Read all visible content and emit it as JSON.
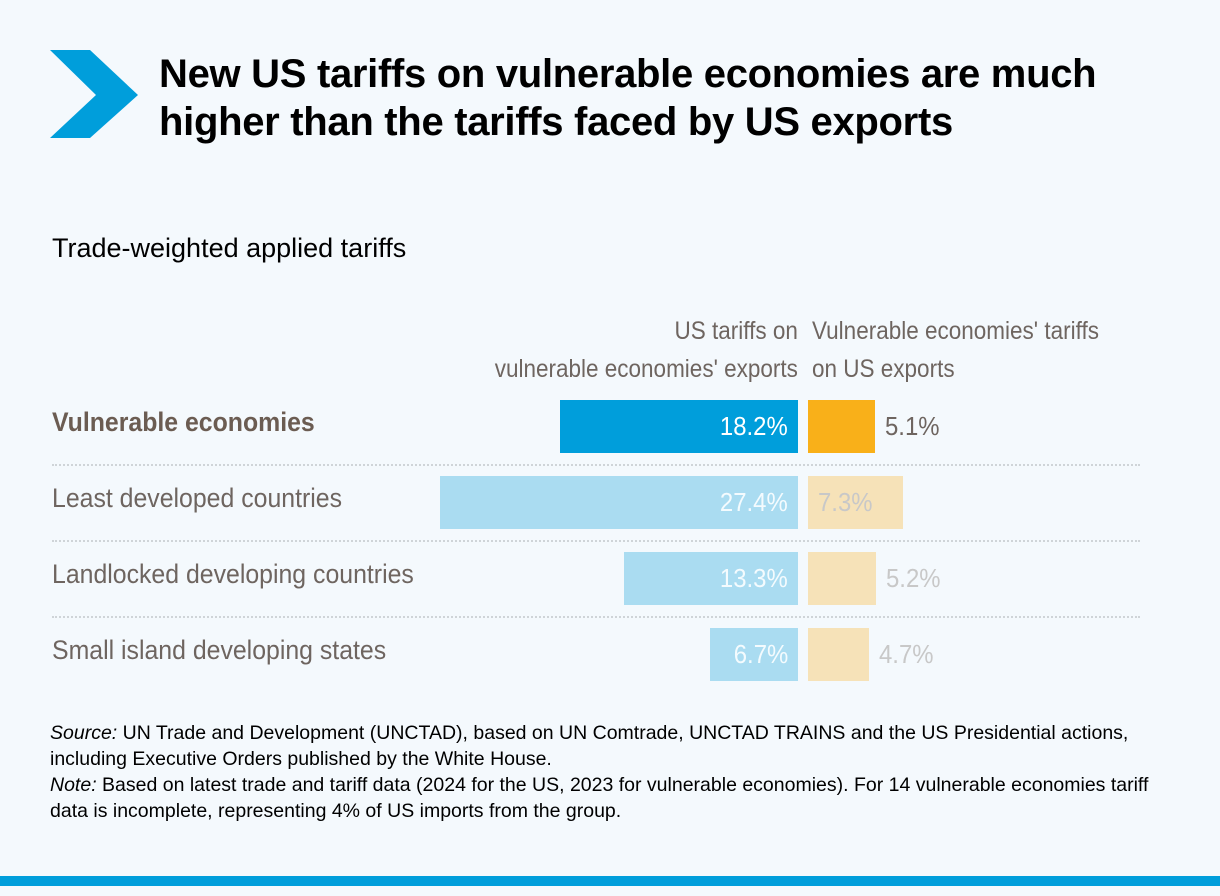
{
  "title": "New US tariffs on vulnerable economies are much higher than the tariffs faced by US exports",
  "colors": {
    "brand": "#009edb",
    "us_highlight": "#009edb",
    "us_light": "#aadcf1",
    "vuln_highlight": "#f9b019",
    "vuln_light": "#f6e2b8"
  },
  "chart_data": {
    "type": "bar",
    "title": "Trade-weighted applied tariffs",
    "unit": "%",
    "categories": [
      "Vulnerable economies",
      "Least developed countries",
      "Landlocked developing countries",
      "Small island developing states"
    ],
    "series": [
      {
        "name": "US tariffs on vulnerable economies' exports",
        "values": [
          18.2,
          27.4,
          13.3,
          6.7
        ],
        "labels": [
          "18.2%",
          "27.4%",
          "13.3%",
          "6.7%"
        ]
      },
      {
        "name": "Vulnerable economies' tariffs on US exports",
        "values": [
          5.1,
          7.3,
          5.2,
          4.7
        ],
        "labels": [
          "5.1%",
          "7.3%",
          "5.2%",
          "4.7%"
        ]
      }
    ],
    "column_headers": [
      "US tariffs on vulnerable economies' exports",
      "Vulnerable economies' tariffs on US exports"
    ],
    "column_header_lines": [
      [
        "US tariffs on",
        "vulnerable economies' exports"
      ],
      [
        "Vulnerable economies' tariffs",
        "on US exports"
      ]
    ],
    "highlighted_category": "Vulnerable economies"
  },
  "footer": {
    "source_label": "Source:",
    "source_text": " UN Trade and Development (UNCTAD), based on UN Comtrade, UNCTAD TRAINS and the US Presidential actions, including Executive Orders published by the White House.",
    "note_label": "Note:",
    "note_text": " Based on latest trade and tariff data (2024 for the US, 2023 for vulnerable economies). For 14 vulnerable economies tariff data is incomplete, representing 4% of US imports from the group."
  }
}
